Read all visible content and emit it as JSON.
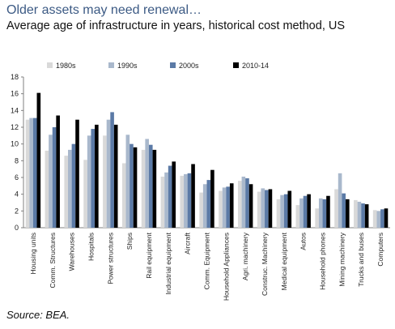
{
  "title": "Older assets may need renewal…",
  "subtitle": "Average age of infrastructure in years, historical cost method, US",
  "source": "Source:  BEA.",
  "chart_data": {
    "type": "bar",
    "ylim": [
      0,
      18
    ],
    "yticks": [
      0,
      2,
      4,
      6,
      8,
      10,
      12,
      14,
      16,
      18
    ],
    "grid": false,
    "legend_position": "top",
    "categories": [
      "Housing units",
      "Comm. Structures",
      "Warehouses",
      "Hospitals",
      "Power structures",
      "Ships",
      "Rail equipment",
      "Industrial equipment",
      "Aircraft",
      "Comm. Equipment",
      "Household Appliances",
      "Agri. machinery",
      "Construc. Machinery",
      "Medical equipment",
      "Autos",
      "Household phones",
      "Mining machinery",
      "Trucks and buses",
      "Computers"
    ],
    "series": [
      {
        "name": "1980s",
        "color": "#d9d9d9",
        "values": [
          12.9,
          9.2,
          8.6,
          8.1,
          11.0,
          7.7,
          9.3,
          6.1,
          6.2,
          4.2,
          4.4,
          5.6,
          4.3,
          3.4,
          2.7,
          2.3,
          4.6,
          3.3,
          2.1
        ]
      },
      {
        "name": "1990s",
        "color": "#a9b8cc",
        "values": [
          13.1,
          11.1,
          9.3,
          11.0,
          12.9,
          11.1,
          10.6,
          6.6,
          6.4,
          5.2,
          4.8,
          6.1,
          4.7,
          3.9,
          3.5,
          3.5,
          6.5,
          3.1,
          2.0
        ]
      },
      {
        "name": "2000s",
        "color": "#5b7aa6",
        "values": [
          13.1,
          12.0,
          10.0,
          11.8,
          13.8,
          10.0,
          9.9,
          7.4,
          6.5,
          5.7,
          4.9,
          5.9,
          4.5,
          4.0,
          3.8,
          3.4,
          4.1,
          2.9,
          2.2
        ]
      },
      {
        "name": "2010-14",
        "color": "#000000",
        "values": [
          16.1,
          13.4,
          12.9,
          12.3,
          12.3,
          9.6,
          9.3,
          7.9,
          7.6,
          6.9,
          5.3,
          5.2,
          4.6,
          4.4,
          4.0,
          3.8,
          3.4,
          2.8,
          2.3
        ]
      }
    ]
  }
}
